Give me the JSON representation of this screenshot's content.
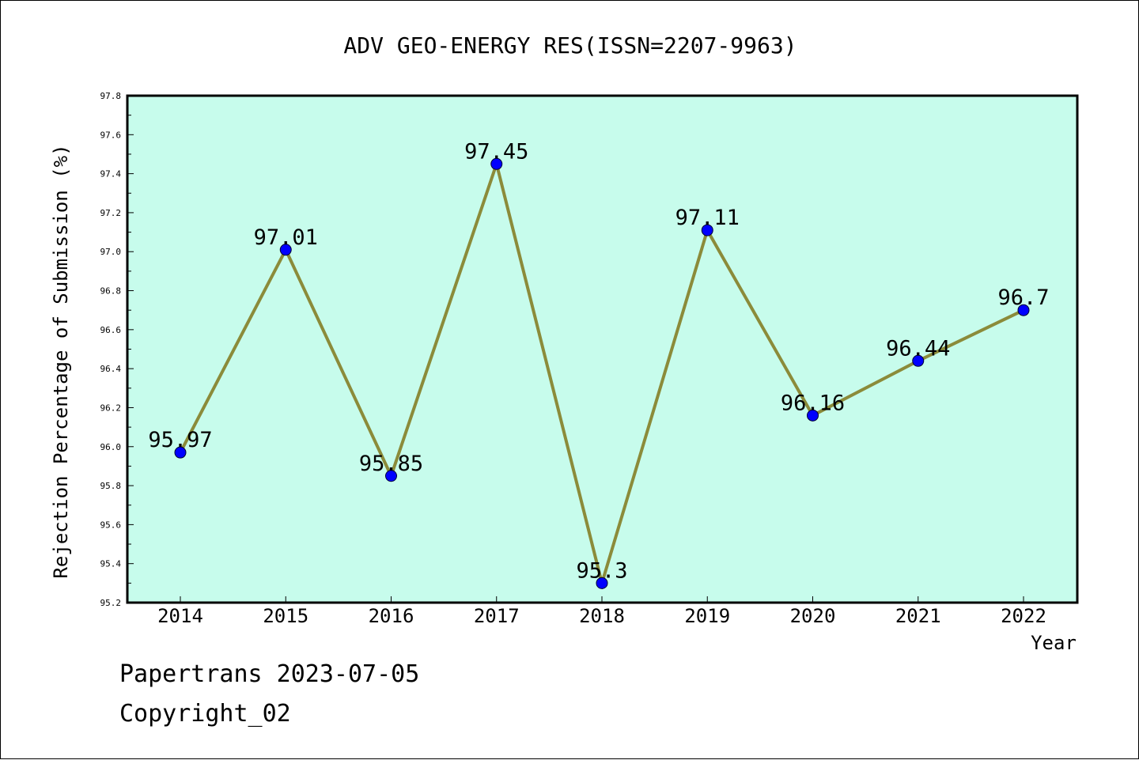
{
  "chart_data": {
    "type": "line",
    "title": "ADV GEO-ENERGY RES(ISSN=2207-9963)",
    "xlabel": "Year",
    "ylabel": "Rejection Percentage of Submission (%)",
    "categories": [
      "2014",
      "2015",
      "2016",
      "2017",
      "2018",
      "2019",
      "2020",
      "2021",
      "2022"
    ],
    "series": [
      {
        "values": [
          95.97,
          97.01,
          95.85,
          97.45,
          95.3,
          97.11,
          96.16,
          96.44,
          96.7
        ],
        "labels": [
          "95.97",
          "97.01",
          "95.85",
          "97.45",
          "95.3",
          "97.11",
          "96.16",
          "96.44",
          "96.7"
        ]
      }
    ],
    "ylim": [
      95.2,
      97.8
    ],
    "yticks": [
      "95.2",
      "95.4",
      "95.6",
      "95.8",
      "96.0",
      "96.2",
      "96.4",
      "96.6",
      "96.8",
      "97.0",
      "97.2",
      "97.4",
      "97.6",
      "97.8"
    ],
    "grid": false,
    "legend": "none",
    "colors": {
      "plot_background": "#c7fcec",
      "line": "#8b8b3a",
      "marker": "#0000ff"
    }
  },
  "footer": {
    "date_text": "Papertrans 2023-07-05",
    "copyright_text": "Copyright_02"
  }
}
